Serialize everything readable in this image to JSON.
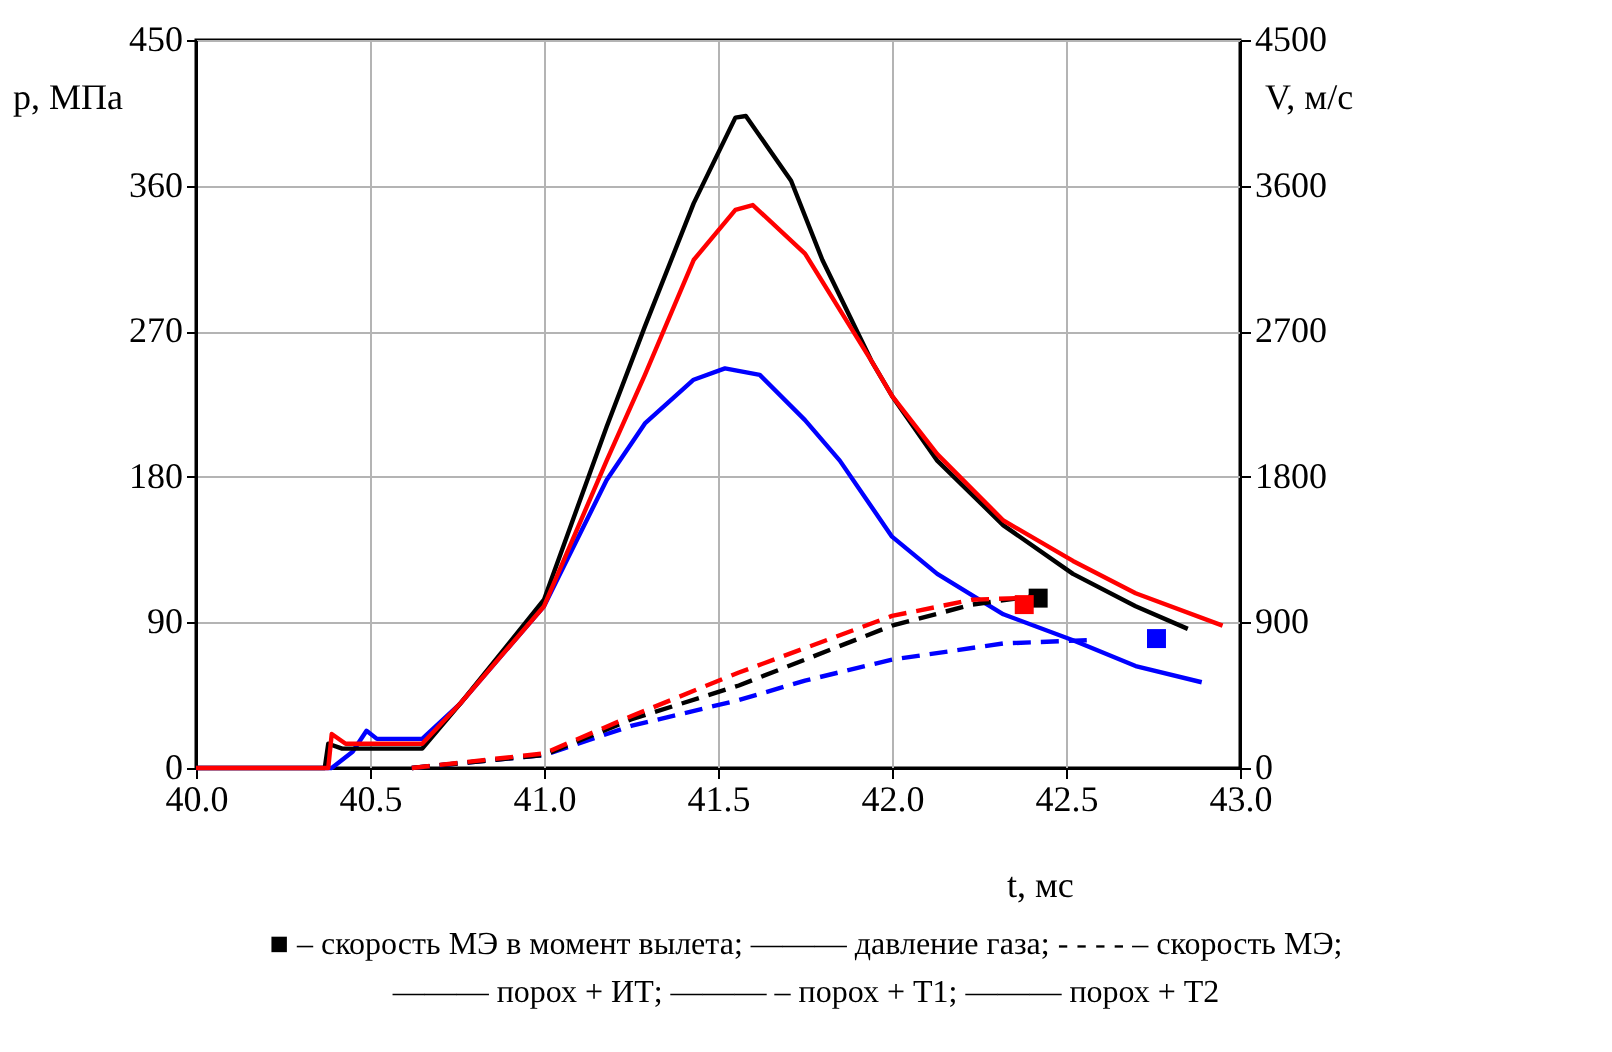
{
  "chart_data": {
    "type": "line",
    "xlabel": "t, мс",
    "ylabel": "p, МПа",
    "y2label": "V, м/с",
    "xlim": [
      40.0,
      43.0
    ],
    "xticks": [
      {
        "value": 40,
        "label": "40.0"
      },
      {
        "value": 40.5,
        "label": "40.5"
      },
      {
        "value": 41,
        "label": "41.0"
      },
      {
        "value": 41.5,
        "label": "41.5"
      },
      {
        "value": 42,
        "label": "42.0"
      },
      {
        "value": 42.5,
        "label": "42.5"
      },
      {
        "value": 43,
        "label": "43.0"
      }
    ],
    "ylim": [
      0,
      450
    ],
    "yticks": [
      0,
      90,
      180,
      270,
      360,
      450
    ],
    "y2lim": [
      0,
      4500
    ],
    "y2ticks": [
      0,
      900,
      1800,
      2700,
      3600,
      4500
    ],
    "grid": true,
    "series": [
      {
        "color": "#0000ff",
        "line_style": "solid",
        "x": [
          40.0,
          40.39,
          40.45,
          40.49,
          40.52,
          40.65,
          40.76,
          41.0,
          41.18,
          41.29,
          41.43,
          41.52,
          41.62,
          41.75,
          41.85,
          42.0,
          42.13,
          42.32,
          42.52,
          42.7,
          42.89
        ],
        "values": [
          0,
          0,
          10,
          23,
          18,
          18,
          40,
          100,
          178,
          213,
          240,
          247,
          243,
          215,
          190,
          143,
          120,
          95,
          79,
          63,
          53
        ]
      },
      {
        "color": "#000000",
        "line_style": "solid",
        "x": [
          40.0,
          40.37,
          40.38,
          40.42,
          40.65,
          40.76,
          41.0,
          41.18,
          41.29,
          41.43,
          41.55,
          41.58,
          41.71,
          41.8,
          41.94,
          42.0,
          42.13,
          42.32,
          42.52,
          42.7,
          42.85
        ],
        "values": [
          0,
          0,
          15,
          12,
          12,
          40,
          104,
          211,
          273,
          349,
          402,
          403,
          363,
          314,
          252,
          230,
          190,
          150,
          120,
          100,
          86
        ]
      },
      {
        "color": "#ff0000",
        "line_style": "solid",
        "x": [
          40.0,
          40.38,
          40.39,
          40.43,
          40.65,
          40.76,
          41.0,
          41.18,
          41.29,
          41.43,
          41.55,
          41.6,
          41.75,
          41.94,
          42.0,
          42.13,
          42.32,
          42.52,
          42.7,
          42.95
        ],
        "values": [
          0,
          0,
          21,
          15,
          15,
          40,
          100,
          190,
          243,
          314,
          345,
          348,
          318,
          252,
          230,
          194,
          153,
          128,
          108,
          88
        ]
      },
      {
        "type": "line",
        "axis": "y2",
        "color": "#0000ff",
        "line_style": "dashed",
        "x": [
          40.62,
          41.0,
          41.25,
          41.56,
          41.75,
          42.0,
          42.32,
          42.56
        ],
        "values": [
          0,
          80,
          260,
          420,
          540,
          670,
          770,
          790
        ]
      },
      {
        "type": "line",
        "axis": "y2",
        "color": "#000000",
        "line_style": "dashed",
        "x": [
          40.62,
          41.0,
          41.25,
          41.56,
          42.0,
          42.23,
          42.4
        ],
        "values": [
          0,
          80,
          300,
          510,
          880,
          1010,
          1060
        ]
      },
      {
        "type": "line",
        "axis": "y2",
        "color": "#ff0000",
        "line_style": "dashed",
        "x": [
          40.62,
          41.0,
          41.25,
          41.56,
          42.0,
          42.23,
          42.36
        ],
        "values": [
          0,
          90,
          320,
          590,
          940,
          1040,
          1050
        ]
      },
      {
        "type": "scatter",
        "axis": "y2",
        "marker": "square",
        "color": "#0000ff",
        "x": [
          42.76
        ],
        "values": [
          800
        ]
      },
      {
        "type": "scatter",
        "axis": "y2",
        "marker": "square",
        "color": "#000000",
        "x": [
          42.42
        ],
        "values": [
          1050
        ]
      },
      {
        "type": "scatter",
        "axis": "y2",
        "marker": "square",
        "color": "#ff0000",
        "x": [
          42.38
        ],
        "values": [
          1010
        ]
      }
    ],
    "annotations": [
      "■ – скорость МЭ в момент вылета; ——— давление газа; - - - - – скорость МЭ;",
      "——— порох + ИТ; ——— – порох + Т1; ——— порох + Т2"
    ]
  }
}
